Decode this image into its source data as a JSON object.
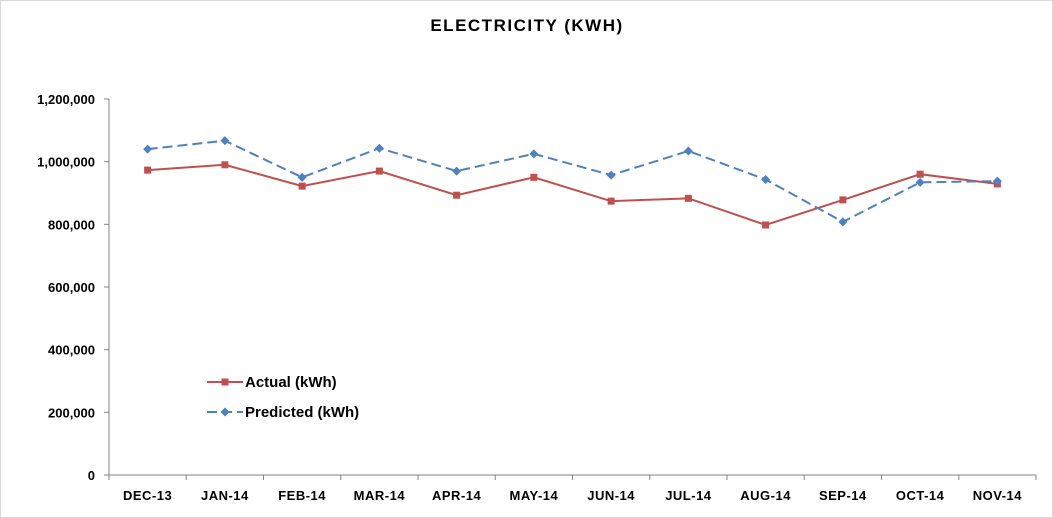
{
  "chart_data": {
    "type": "line",
    "title": "ELECTRICITY (KWH)",
    "xlabel": "",
    "ylabel": "",
    "categories": [
      "DEC-13",
      "JAN-14",
      "FEB-14",
      "MAR-14",
      "APR-14",
      "MAY-14",
      "JUN-14",
      "JUL-14",
      "AUG-14",
      "SEP-14",
      "OCT-14",
      "NOV-14"
    ],
    "ylim": [
      0,
      1200000
    ],
    "yticks": [
      0,
      200000,
      400000,
      600000,
      800000,
      1000000,
      1200000
    ],
    "ytick_labels": [
      "0",
      "200,000",
      "400,000",
      "600,000",
      "800,000",
      "1,000,000",
      "1,200,000"
    ],
    "grid": false,
    "legend_position": "inside-lower-left",
    "series": [
      {
        "name": "Actual (kWh)",
        "color": "#c0504d",
        "marker": "square",
        "dash": "solid",
        "values": [
          973000,
          990000,
          922000,
          970000,
          893000,
          950000,
          874000,
          883000,
          798000,
          878000,
          960000,
          929000
        ]
      },
      {
        "name": "Predicted (kWh)",
        "color": "#4f81bd",
        "marker": "diamond",
        "dash": "dashed",
        "values": [
          1040000,
          1067000,
          950000,
          1043000,
          970000,
          1025000,
          957000,
          1034000,
          943000,
          808000,
          934000,
          938000
        ]
      }
    ]
  }
}
